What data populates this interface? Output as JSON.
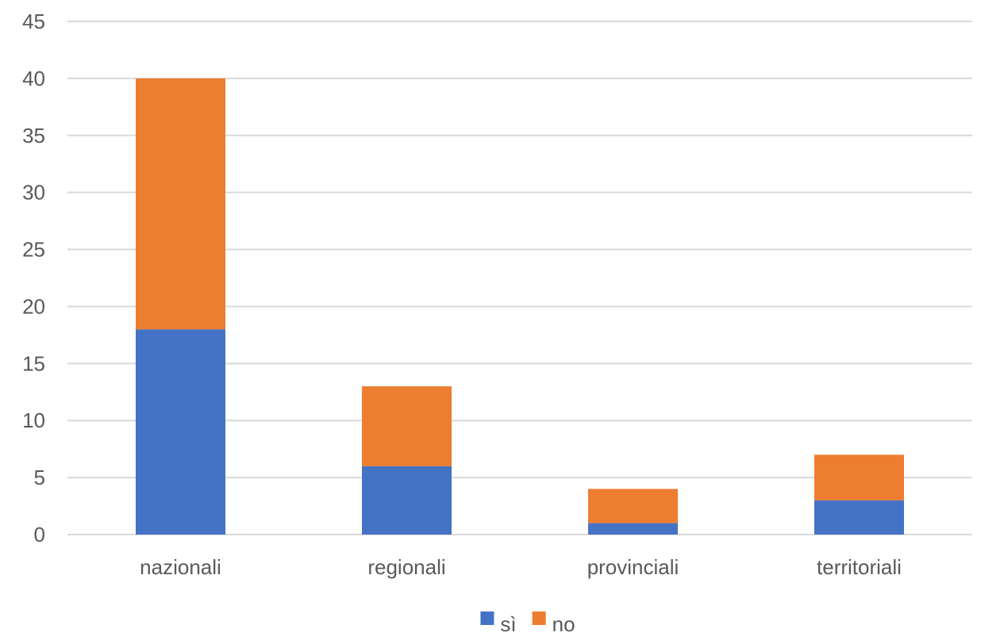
{
  "chart_data": {
    "type": "bar",
    "stacked": true,
    "categories": [
      "nazionali",
      "regionali",
      "provinciali",
      "territoriali"
    ],
    "series": [
      {
        "name": "sì",
        "values": [
          18,
          6,
          1,
          3
        ],
        "color": "#4472C4"
      },
      {
        "name": "no",
        "values": [
          22,
          7,
          3,
          4
        ],
        "color": "#ED7D31"
      }
    ],
    "ylim": [
      0,
      45
    ],
    "yticks": [
      0,
      5,
      10,
      15,
      20,
      25,
      30,
      35,
      40,
      45
    ],
    "grid": true,
    "gridColor": "#D9D9D9",
    "legend": "bottom-center",
    "title": "",
    "xlabel": "",
    "ylabel": ""
  }
}
